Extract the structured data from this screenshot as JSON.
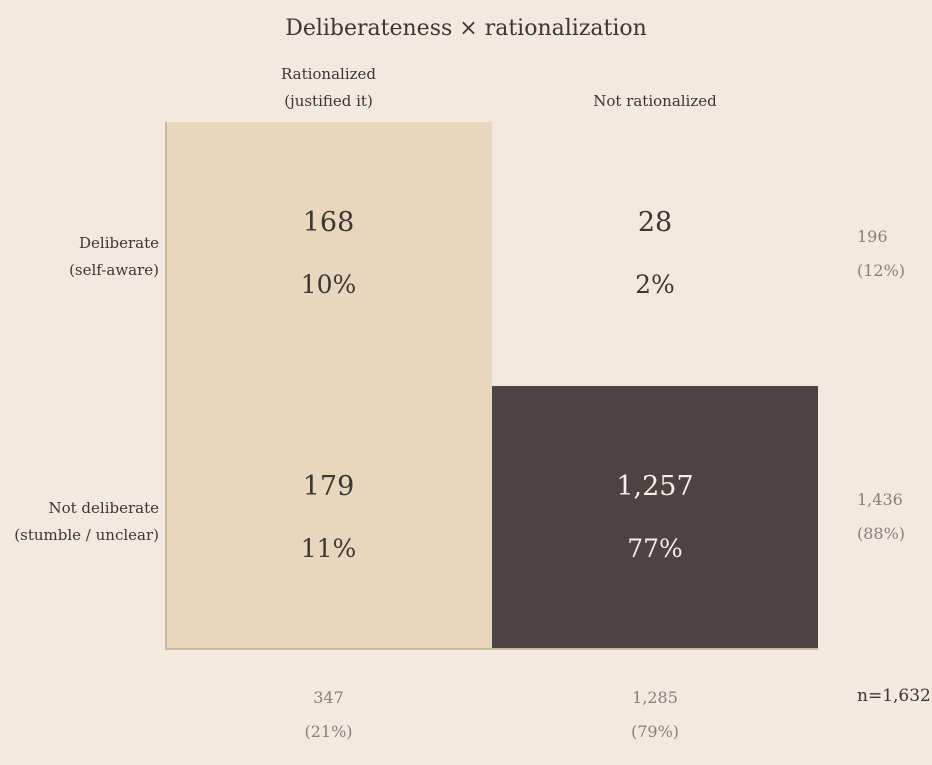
{
  "title": "Deliberateness × rationalization",
  "colors": {
    "background": "#f2e9df",
    "rationalized_fill": "#e8d7bd",
    "not_rationalized_fill": "#f2e8dc",
    "highlight_fill": "#4a4542",
    "text_dark": "#3b3735",
    "text_light": "#f6efe6",
    "text_muted": "#8a807a"
  },
  "columns": [
    {
      "label_line1": "Rationalized",
      "label_line2": "(justified it)"
    },
    {
      "label_line1": "Not rationalized",
      "label_line2": ""
    }
  ],
  "rows": [
    {
      "label_line1": "Deliberate",
      "label_line2": "(self-aware)"
    },
    {
      "label_line1": "Not deliberate",
      "label_line2": "(stumble / unclear)"
    }
  ],
  "cells": [
    [
      {
        "count": "168",
        "pct": "10%"
      },
      {
        "count": "28",
        "pct": "2%"
      }
    ],
    [
      {
        "count": "179",
        "pct": "11%"
      },
      {
        "count": "1,257",
        "pct": "77%"
      }
    ]
  ],
  "row_totals": [
    {
      "count": "196",
      "pct": "(12%)"
    },
    {
      "count": "1,436",
      "pct": "(88%)"
    }
  ],
  "col_totals": [
    {
      "count": "347",
      "pct": "(21%)"
    },
    {
      "count": "1,285",
      "pct": "(79%)"
    }
  ],
  "grand_total": "n=1,632",
  "chart_data": {
    "type": "heatmap",
    "title": "Deliberateness × rationalization",
    "x_categories": [
      "Rationalized (justified it)",
      "Not rationalized"
    ],
    "y_categories": [
      "Deliberate (self-aware)",
      "Not deliberate (stumble / unclear)"
    ],
    "values": [
      [
        168,
        28
      ],
      [
        179,
        1257
      ]
    ],
    "percentages": [
      [
        10,
        2
      ],
      [
        11,
        77
      ]
    ],
    "row_totals": [
      196,
      1436
    ],
    "row_total_pct": [
      12,
      88
    ],
    "col_totals": [
      347,
      1285
    ],
    "col_total_pct": [
      21,
      79
    ],
    "n": 1632,
    "legend": "none"
  }
}
